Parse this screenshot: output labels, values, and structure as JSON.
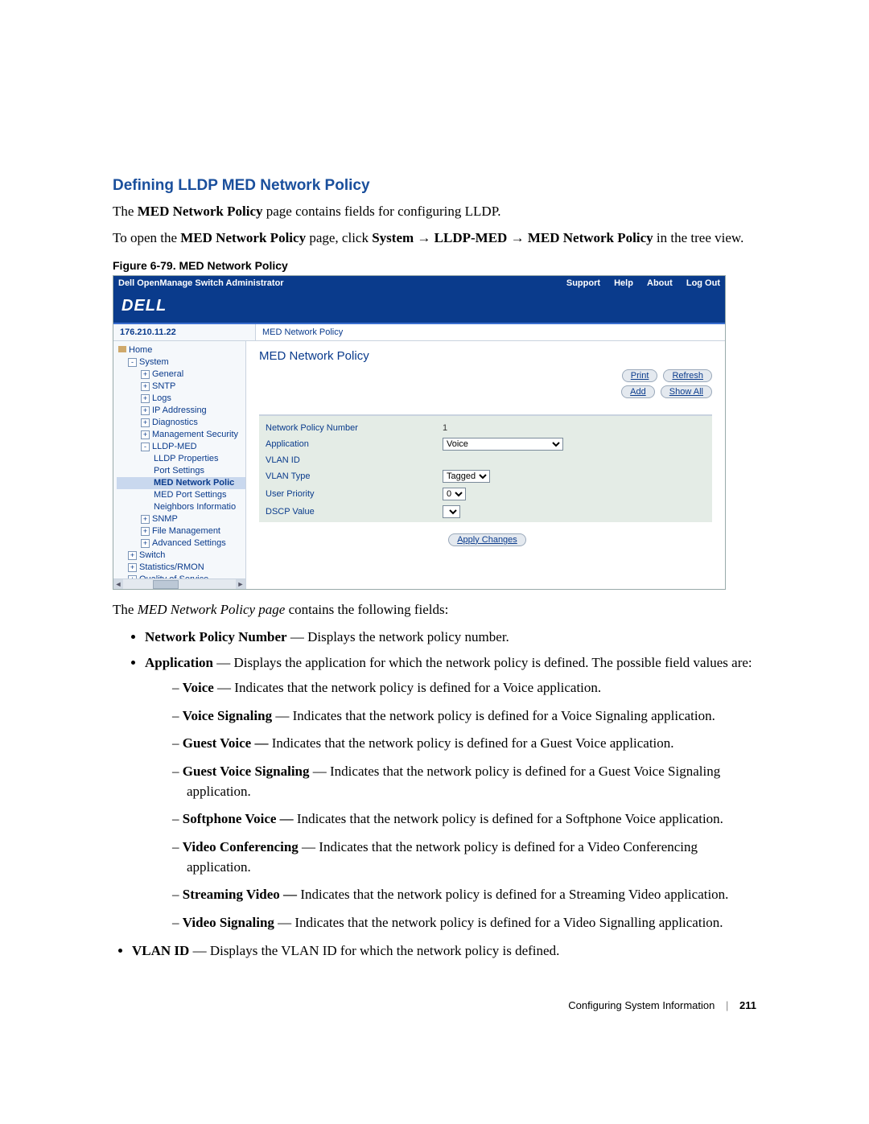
{
  "section_title": "Defining LLDP MED Network Policy",
  "intro_prefix": "The ",
  "intro_bold": "MED Network Policy",
  "intro_suffix": " page contains fields for configuring LLDP.",
  "open_prefix": "To open the ",
  "open_bold": "MED Network Policy",
  "open_mid": " page, click ",
  "nav_system": "System",
  "nav_lldp": "LLDP-MED",
  "nav_med": "MED Network Policy",
  "open_suffix": " in the tree view.",
  "arrow": "→",
  "fig_caption": "Figure 6-79.    MED Network Policy",
  "shot": {
    "app_title": "Dell OpenManage Switch Administrator",
    "header_links": [
      "Support",
      "Help",
      "About",
      "Log Out"
    ],
    "logo": "DELL",
    "ip": "176.210.11.22",
    "breadcrumb": "MED Network Policy",
    "content_title": "MED Network Policy",
    "buttons_top1": [
      "Print",
      "Refresh"
    ],
    "buttons_top2": [
      "Add",
      "Show All"
    ],
    "tree": [
      {
        "lvl": 0,
        "icon": "home",
        "label": "Home"
      },
      {
        "lvl": 1,
        "pm": "-",
        "label": "System"
      },
      {
        "lvl": 2,
        "pm": "+",
        "label": "General"
      },
      {
        "lvl": 2,
        "pm": "+",
        "label": "SNTP"
      },
      {
        "lvl": 2,
        "pm": "+",
        "label": "Logs"
      },
      {
        "lvl": 2,
        "pm": "+",
        "label": "IP Addressing"
      },
      {
        "lvl": 2,
        "pm": "+",
        "label": "Diagnostics"
      },
      {
        "lvl": 2,
        "pm": "+",
        "label": "Management Security"
      },
      {
        "lvl": 2,
        "pm": "-",
        "label": "LLDP-MED"
      },
      {
        "lvl": 3,
        "label": "LLDP Properties"
      },
      {
        "lvl": 3,
        "label": "Port Settings"
      },
      {
        "lvl": 3,
        "label": "MED Network Polic",
        "sel": true
      },
      {
        "lvl": 3,
        "label": "MED Port Settings"
      },
      {
        "lvl": 3,
        "label": "Neighbors Informatio"
      },
      {
        "lvl": 2,
        "pm": "+",
        "label": "SNMP"
      },
      {
        "lvl": 2,
        "pm": "+",
        "label": "File Management"
      },
      {
        "lvl": 2,
        "pm": "+",
        "label": "Advanced Settings"
      },
      {
        "lvl": 1,
        "pm": "+",
        "label": "Switch"
      },
      {
        "lvl": 1,
        "pm": "+",
        "label": "Statistics/RMON"
      },
      {
        "lvl": 1,
        "pm": "+",
        "label": "Quality of Service"
      }
    ],
    "rows": [
      {
        "label": "Network Policy Number",
        "type": "text",
        "value": "1"
      },
      {
        "label": "Application",
        "type": "select",
        "value": "Voice",
        "wide": true
      },
      {
        "label": "VLAN ID",
        "type": "text",
        "value": ""
      },
      {
        "label": "VLAN Type",
        "type": "select",
        "value": "Tagged"
      },
      {
        "label": "User Priority",
        "type": "select",
        "value": "0"
      },
      {
        "label": "DSCP Value",
        "type": "select",
        "value": ""
      }
    ],
    "apply": "Apply Changes"
  },
  "fields_intro_prefix": "The ",
  "fields_intro_italic": "MED Network Policy page ",
  "fields_intro_suffix": "contains the following fields:",
  "bullets": {
    "npn_b": "Network Policy Number",
    "npn_t": " — Displays the network policy number.",
    "app_b": "Application",
    "app_t": " — Displays the application for which the network policy is defined. The possible field values are:",
    "voice_b": "Voice",
    "voice_t": " — Indicates that the network policy is defined for a Voice application.",
    "vsig_b": "Voice Signaling",
    "vsig_t": " — Indicates that the network policy is defined for a Voice Signaling application.",
    "gv_b": "Guest Voice —",
    "gv_t": " Indicates that the network policy is defined for a Guest Voice application.",
    "gvs_b": "Guest Voice Signaling",
    "gvs_t": " — Indicates that the network policy is defined for a Guest Voice Signaling application.",
    "sp_b": "Softphone Voice —",
    "sp_t": " Indicates that the network policy is defined for a Softphone Voice application.",
    "vc_b": "Video Conferencing",
    "vc_t": " — Indicates that the network policy is defined for a Video Conferencing application.",
    "sv_b": "Streaming Video —",
    "sv_t": " Indicates that the network policy is defined for a Streaming Video application.",
    "vidsig_b": "Video Signaling",
    "vidsig_t": " — Indicates that the network policy is defined for a Video Signalling application.",
    "vlan_b": "VLAN ID",
    "vlan_t": " — Displays the VLAN ID for which the network policy is defined."
  },
  "footer_section": "Configuring System Information",
  "footer_page": "211"
}
